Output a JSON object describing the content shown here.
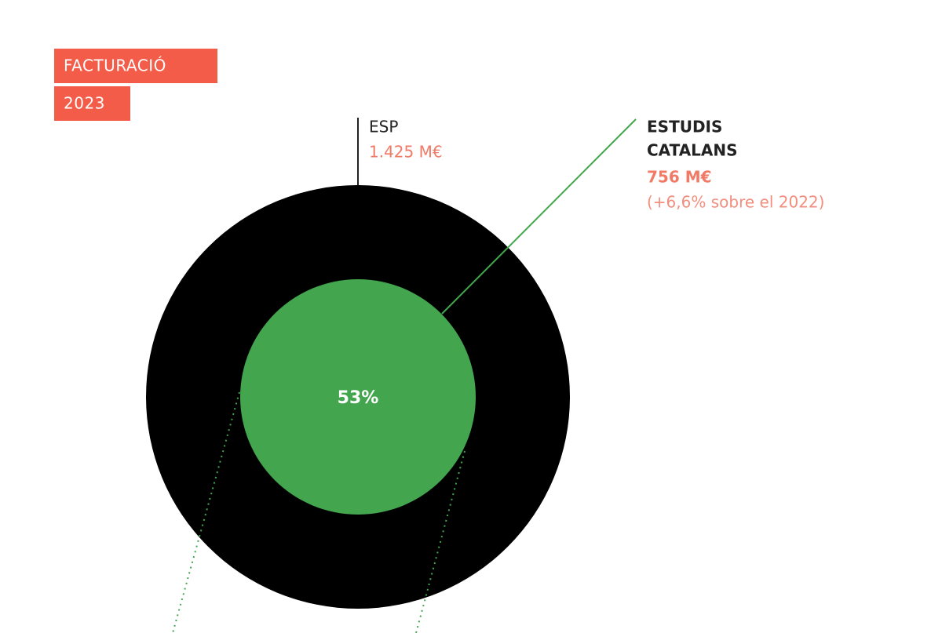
{
  "header": {
    "title": "FACTURACIÓ",
    "year": "2023"
  },
  "outer": {
    "label": "ESP",
    "value": "1.425 M€"
  },
  "inner": {
    "label_lines": [
      "ESTUDIS",
      "CATALANS"
    ],
    "value": "756 M€",
    "note": "(+6,6% sobre el 2022)",
    "share": "53%"
  }
}
